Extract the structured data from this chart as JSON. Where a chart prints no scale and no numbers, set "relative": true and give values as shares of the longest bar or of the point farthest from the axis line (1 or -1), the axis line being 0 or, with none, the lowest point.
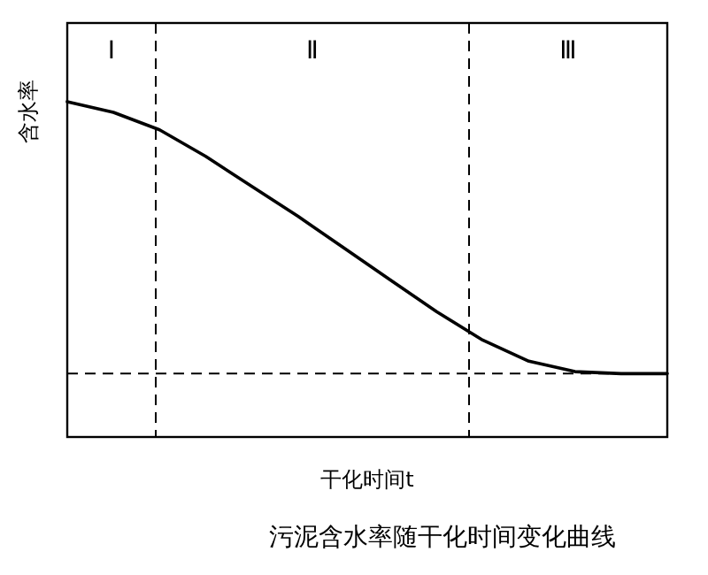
{
  "chart_data": {
    "type": "line",
    "relative": true,
    "xlabel": "干化时间t",
    "ylabel": "含水率",
    "annotations": [
      "Ⅰ",
      "Ⅱ",
      "Ⅲ",
      "污泥含水率随干化时间变化曲线"
    ],
    "categories": [
      null,
      null,
      null,
      null,
      null,
      null,
      null,
      null,
      null,
      null,
      null,
      null,
      null,
      null
    ],
    "series": [
      {
        "color": "#000000",
        "values": [
          1.0,
          0.968,
          0.916,
          0.837,
          0.747,
          0.658,
          0.563,
          0.468,
          0.374,
          0.289,
          0.226,
          0.195,
          0.189,
          0.189
        ]
      }
    ],
    "ref_lines": [
      {
        "axis": "y",
        "value": 0.189,
        "line_style": "dashed"
      }
    ],
    "marker": "none",
    "line_style": "solid"
  }
}
